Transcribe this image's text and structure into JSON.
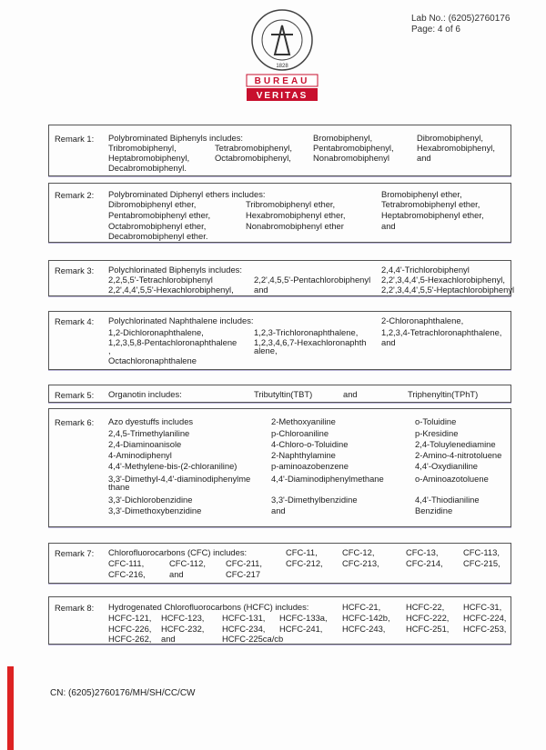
{
  "header": {
    "lab_no": "Lab No.: (6205)2760176",
    "page": "Page: 4 of 6"
  },
  "logo": {
    "ring_text": "BUREAU VERITAS",
    "year": "1828",
    "word1": "BUREAU",
    "word2": "VERITAS",
    "color": "#c8102e"
  },
  "remarks": [
    {
      "label": "Remark 1:",
      "rows": [
        [
          "Polybrominated Biphenyls includes:",
          null,
          "Bromobiphenyl,",
          "Dibromobiphenyl,"
        ],
        [
          "Tribromobiphenyl,",
          "Tetrabromobiphenyl,",
          "Pentabromobiphenyl,",
          "Hexabromobiphenyl,"
        ],
        [
          "Heptabromobiphenyl,",
          "Octabromobiphenyl,",
          "Nonabromobiphenyl",
          "and"
        ],
        [
          "Decabromobiphenyl."
        ]
      ]
    },
    {
      "label": "Remark 2:",
      "rows": [
        [
          "Polybrominated Diphenyl ethers includes:",
          null,
          "Bromobiphenyl ether,"
        ],
        [
          "Dibromobiphenyl ether,",
          "Tribromobiphenyl ether,",
          "Tetrabromobiphenyl ether,"
        ],
        [
          "Pentabromobiphenyl ether,",
          "Hexabromobiphenyl ether,",
          "Heptabromobiphenyl ether,"
        ],
        [
          "Octabromobiphenyl ether,",
          "Nonabromobiphenyl ether",
          "and"
        ],
        [
          "Decabromobiphenyl ether."
        ]
      ]
    },
    {
      "label": "Remark 3:",
      "rows": [
        [
          "Polychlorinated Biphenyls includes:",
          null,
          "2,4,4'-Trichlorobiphenyl"
        ],
        [
          "2,2,5,5'-Tetrachlorobiphenyl",
          "2,2',4,5,5'-Pentachlorobiphenyl",
          "2,2',3,4,4',5-Hexachlorobiphenyl,"
        ],
        [
          "2,2',4,4',5,5'-Hexachlorobiphenyl,",
          "and",
          "2,2',3,4,4',5,5'-Heptachlorobiphenyl"
        ]
      ]
    },
    {
      "label": "Remark 4:",
      "rows": [
        [
          "Polychlorinated Naphthalene includes:",
          null,
          "2-Chloronaphthalene,"
        ],
        [
          "1,2-Dichloronaphthalene,",
          "1,2,3-Trichloronaphthalene,",
          "1,2,3,4-Tetrachloronaphthalene,"
        ],
        [
          "1,2,3,5,8-Pentachloronaphthalene",
          "1,2,3,4,6,7-Hexachloronaphth",
          "and"
        ],
        [
          ",",
          "alene,"
        ],
        [
          "Octachloronaphthalene"
        ]
      ]
    },
    {
      "label": "Remark 5:",
      "rows": [
        [
          "Organotin includes:",
          "Tributyltin(TBT)",
          "and",
          "Triphenyltin(TPhT)"
        ]
      ]
    },
    {
      "label": "Remark 6:",
      "rows": [
        [
          "Azo dyestuffs includes",
          "2-Methoxyaniline",
          "o-Toluidine"
        ],
        [
          "2,4,5-Trimethylaniline",
          "p-Chloroaniline",
          "p-Kresidine"
        ],
        [
          "2,4-Diaminoanisole",
          "4-Chloro-o-Toluidine",
          "2,4-Toluylenediamine"
        ],
        [
          "4-Aminodiphenyl",
          "2-Naphthylamine",
          "2-Amino-4-nitrotoluene"
        ],
        [
          "4,4'-Methylene-bis-(2-chloraniline)",
          "p-aminoazobenzene",
          "4,4'-Oxydianiline"
        ],
        [
          "3,3'-Dimethyl-4,4'-diaminodiphenylme",
          "4,4'-Diaminodiphenylmethane",
          "o-Aminoazotoluene"
        ],
        [
          "thane"
        ],
        [
          "3,3'-Dichlorobenzidine",
          "3,3'-Dimethylbenzidine",
          "4,4'-Thiodianiline"
        ],
        [
          "3,3'-Dimethoxybenzidine",
          "and",
          "Benzidine"
        ]
      ]
    },
    {
      "label": "Remark 7:",
      "rows": [
        [
          "Chlorofluorocarbons (CFC) includes:",
          null,
          null,
          "CFC-11,",
          "CFC-12,",
          "CFC-13,",
          "CFC-113,"
        ],
        [
          "CFC-111,",
          "CFC-112,",
          "CFC-211,",
          "CFC-212,",
          "CFC-213,",
          "CFC-214,",
          "CFC-215,"
        ],
        [
          "CFC-216,",
          "and",
          "CFC-217"
        ]
      ]
    },
    {
      "label": "Remark 8:",
      "rows": [
        [
          "Hydrogenated Chlorofluorocarbons (HCFC) includes:",
          null,
          null,
          null,
          "HCFC-21,",
          "HCFC-22,",
          "HCFC-31,"
        ],
        [
          "HCFC-121,",
          "HCFC-123,",
          "HCFC-131,",
          "HCFC-133a,",
          "HCFC-142b,",
          "HCFC-222,",
          "HCFC-224,"
        ],
        [
          "HCFC-226,",
          "HCFC-232,",
          "HCFC-234,",
          "HCFC-241,",
          "HCFC-243,",
          "HCFC-251,",
          "HCFC-253,"
        ],
        [
          "HCFC-262,",
          "and",
          "HCFC-225ca/cb"
        ]
      ]
    }
  ],
  "footer": {
    "cn": "CN: (6205)2760176/MH/SH/CC/CW"
  }
}
